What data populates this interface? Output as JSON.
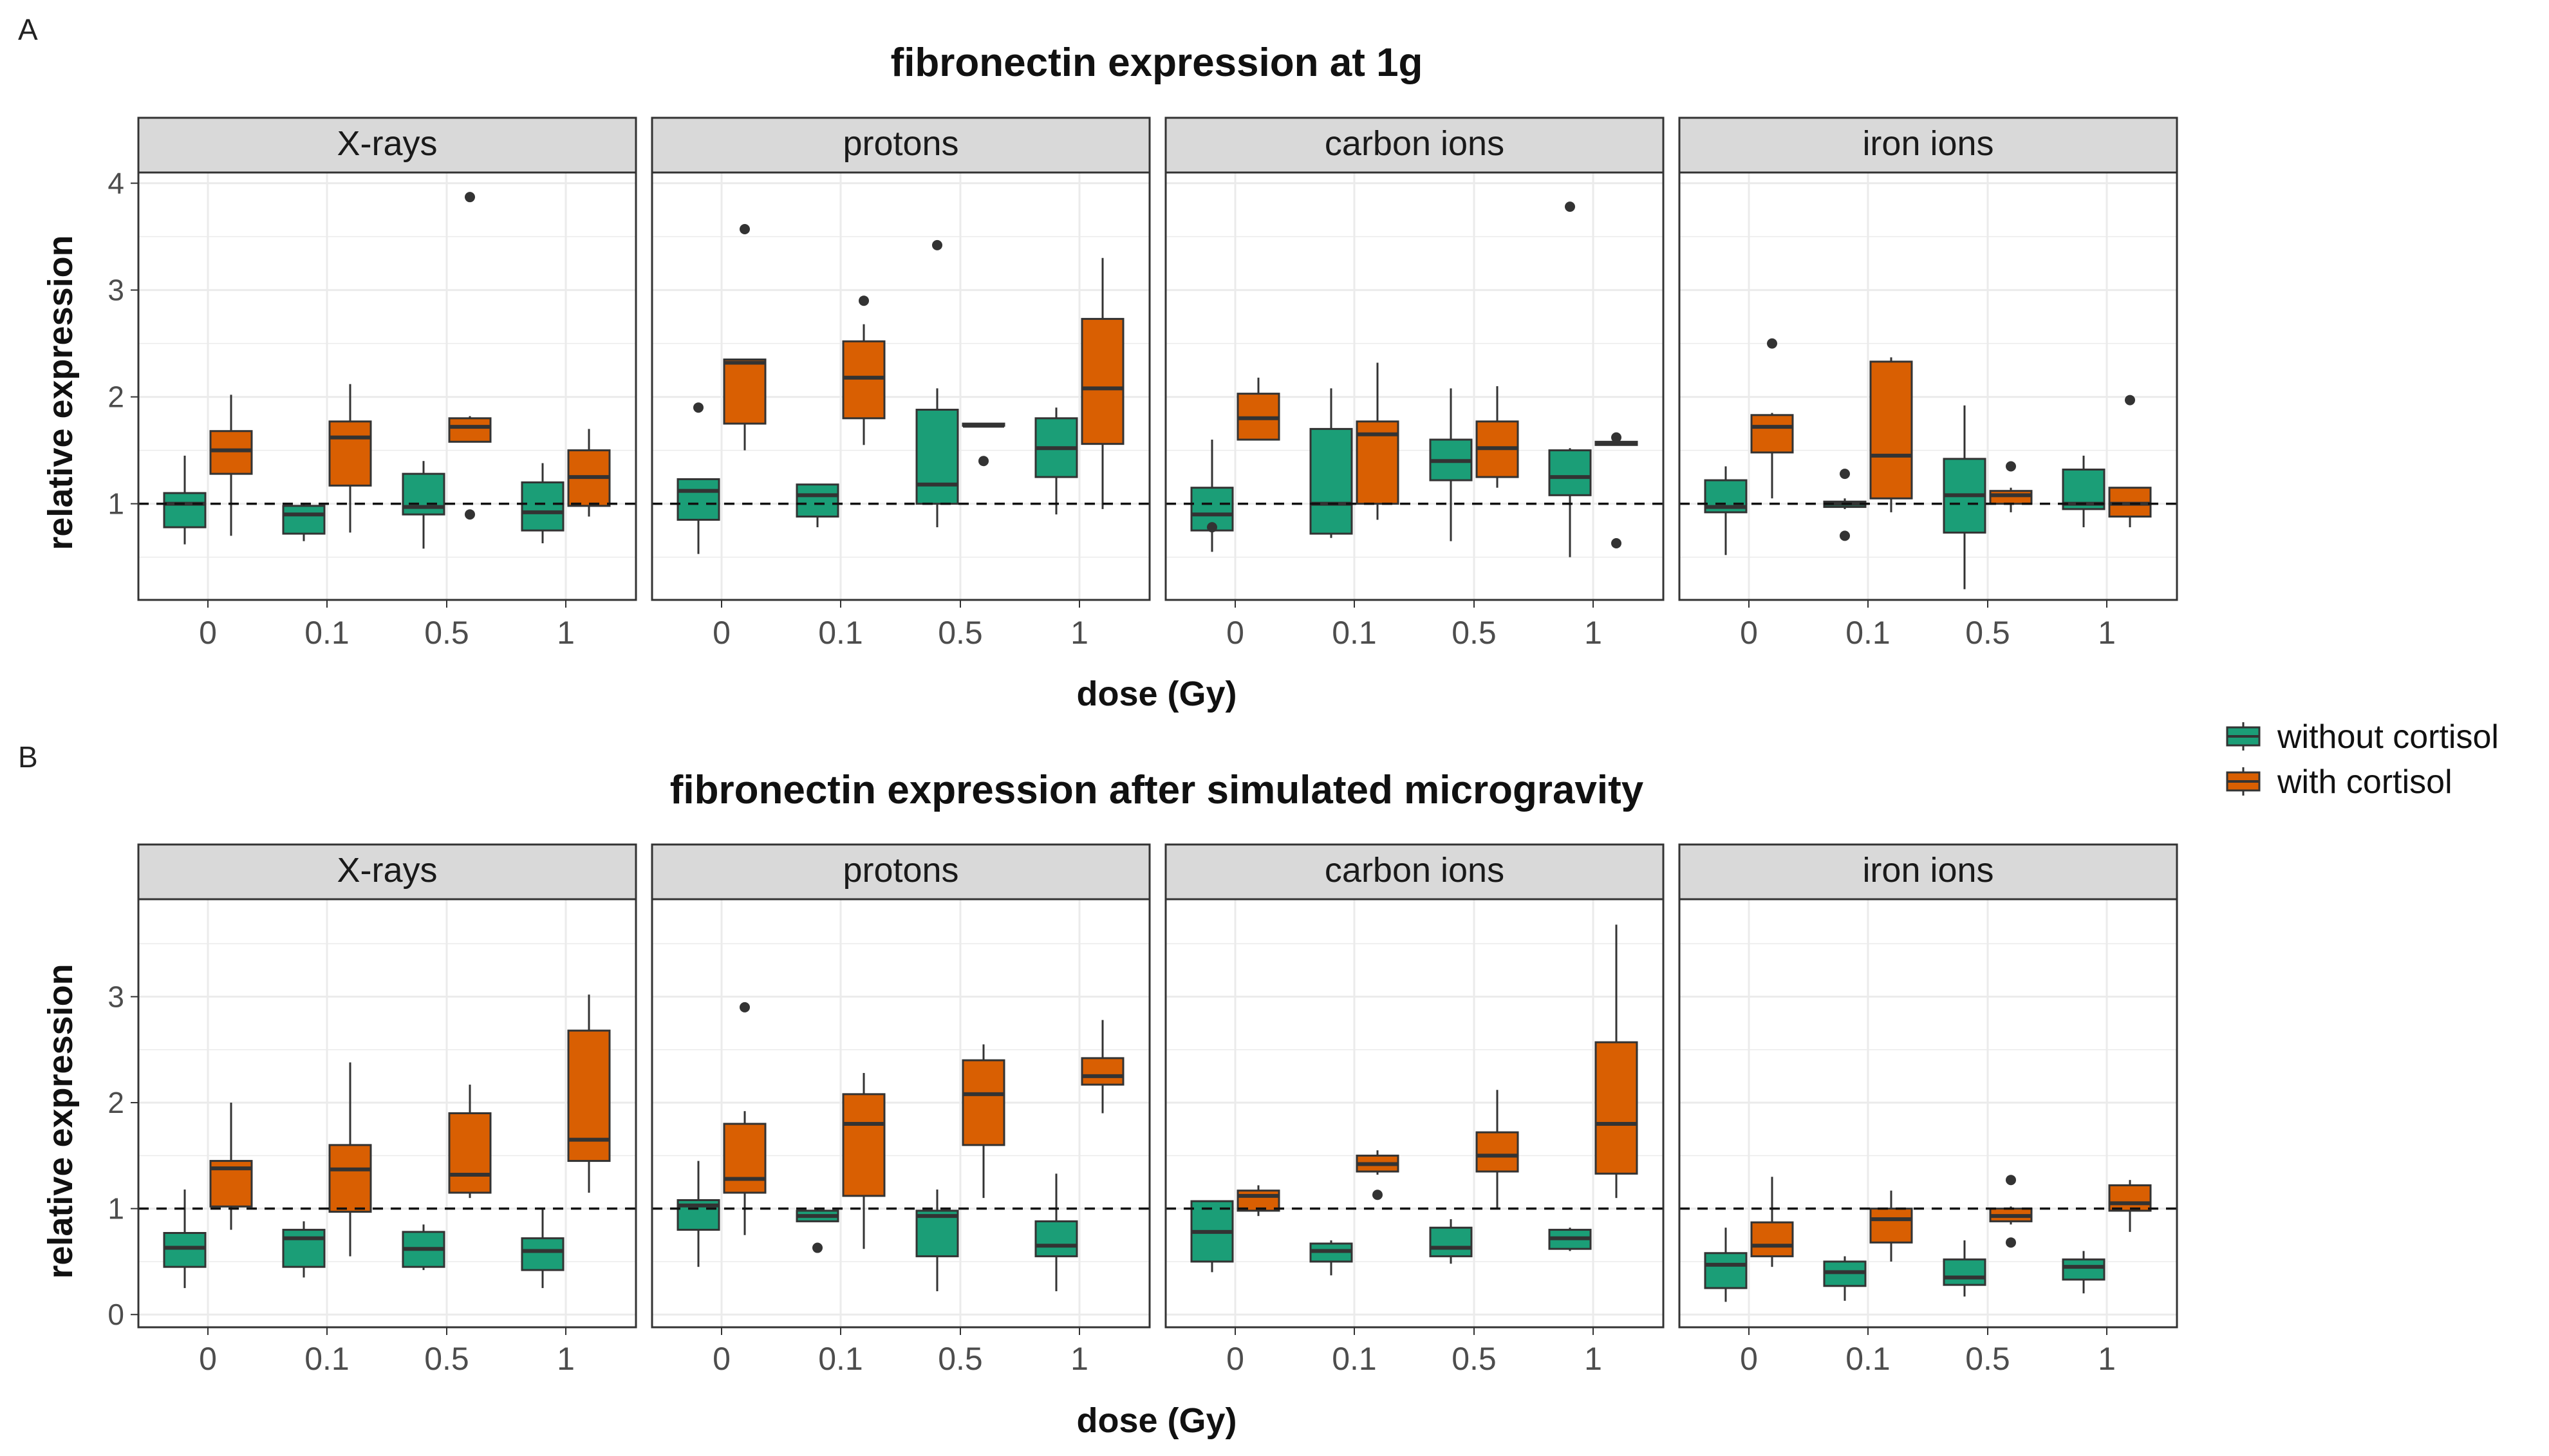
{
  "figure": {
    "legend": {
      "entries": [
        {
          "label": "without cortisol",
          "color": "#1b9e77"
        },
        {
          "label": "with cortisol",
          "color": "#d95f02"
        }
      ]
    },
    "facet_labels": [
      "X-rays",
      "protons",
      "carbon ions",
      "iron ions"
    ],
    "dose_labels": [
      "0",
      "0.1",
      "0.5",
      "1"
    ],
    "colors": {
      "without": "#1b9e77",
      "with": "#d95f02",
      "strip": "#d9d9d9",
      "grid": "#ebebeb"
    }
  },
  "chart_data": [
    {
      "panel_label": "A",
      "type": "boxplot",
      "title": "fibronectin expression at 1g",
      "xlabel": "dose (Gy)",
      "ylabel": "relative expression",
      "ylim": [
        0.1,
        4.1
      ],
      "yticks": [
        1,
        2,
        3,
        4
      ],
      "reference_line": 1,
      "facets": [
        {
          "name": "X-rays",
          "groups": [
            {
              "dose": "0",
              "without": {
                "min": 0.62,
                "q1": 0.78,
                "med": 1.0,
                "q3": 1.1,
                "max": 1.45,
                "out": []
              },
              "with": {
                "min": 0.7,
                "q1": 1.28,
                "med": 1.5,
                "q3": 1.68,
                "max": 2.02,
                "out": []
              }
            },
            {
              "dose": "0.1",
              "without": {
                "min": 0.65,
                "q1": 0.72,
                "med": 0.9,
                "q3": 0.98,
                "max": 1.0,
                "out": []
              },
              "with": {
                "min": 0.73,
                "q1": 1.17,
                "med": 1.62,
                "q3": 1.77,
                "max": 2.12,
                "out": []
              }
            },
            {
              "dose": "0.5",
              "without": {
                "min": 0.58,
                "q1": 0.9,
                "med": 0.97,
                "q3": 1.28,
                "max": 1.4,
                "out": []
              },
              "with": {
                "min": 1.58,
                "q1": 1.58,
                "med": 1.72,
                "q3": 1.8,
                "max": 1.82,
                "out": [
                  3.87,
                  0.9
                ]
              }
            },
            {
              "dose": "1",
              "without": {
                "min": 0.63,
                "q1": 0.75,
                "med": 0.92,
                "q3": 1.2,
                "max": 1.38,
                "out": []
              },
              "with": {
                "min": 0.88,
                "q1": 0.98,
                "med": 1.25,
                "q3": 1.5,
                "max": 1.7,
                "out": []
              }
            }
          ]
        },
        {
          "name": "protons",
          "groups": [
            {
              "dose": "0",
              "without": {
                "min": 0.53,
                "q1": 0.85,
                "med": 1.12,
                "q3": 1.23,
                "max": 1.23,
                "out": [
                  1.9
                ]
              },
              "with": {
                "min": 1.5,
                "q1": 1.75,
                "med": 2.32,
                "q3": 2.35,
                "max": 2.35,
                "out": [
                  3.57
                ]
              }
            },
            {
              "dose": "0.1",
              "without": {
                "min": 0.78,
                "q1": 0.88,
                "med": 1.08,
                "q3": 1.18,
                "max": 1.18,
                "out": []
              },
              "with": {
                "min": 1.55,
                "q1": 1.8,
                "med": 2.18,
                "q3": 2.52,
                "max": 2.68,
                "out": [
                  2.9
                ]
              }
            },
            {
              "dose": "0.5",
              "without": {
                "min": 0.78,
                "q1": 1.0,
                "med": 1.18,
                "q3": 1.88,
                "max": 2.08,
                "out": [
                  3.42
                ]
              },
              "with": {
                "min": 1.73,
                "q1": 1.73,
                "med": 1.73,
                "q3": 1.75,
                "max": 1.75,
                "out": [
                  1.4
                ]
              }
            },
            {
              "dose": "1",
              "without": {
                "min": 0.9,
                "q1": 1.25,
                "med": 1.52,
                "q3": 1.8,
                "max": 1.9,
                "out": []
              },
              "with": {
                "min": 0.95,
                "q1": 1.56,
                "med": 2.08,
                "q3": 2.73,
                "max": 3.3,
                "out": []
              }
            }
          ]
        },
        {
          "name": "carbon ions",
          "groups": [
            {
              "dose": "0",
              "without": {
                "min": 0.55,
                "q1": 0.75,
                "med": 0.9,
                "q3": 1.15,
                "max": 1.6,
                "out": [
                  0.78
                ]
              },
              "with": {
                "min": 1.6,
                "q1": 1.6,
                "med": 1.8,
                "q3": 2.03,
                "max": 2.18,
                "out": []
              }
            },
            {
              "dose": "0.1",
              "without": {
                "min": 0.68,
                "q1": 0.72,
                "med": 1.0,
                "q3": 1.7,
                "max": 2.08,
                "out": []
              },
              "with": {
                "min": 0.85,
                "q1": 1.0,
                "med": 1.65,
                "q3": 1.77,
                "max": 2.32,
                "out": []
              }
            },
            {
              "dose": "0.5",
              "without": {
                "min": 0.65,
                "q1": 1.22,
                "med": 1.4,
                "q3": 1.6,
                "max": 2.08,
                "out": []
              },
              "with": {
                "min": 1.15,
                "q1": 1.25,
                "med": 1.52,
                "q3": 1.77,
                "max": 2.1,
                "out": []
              }
            },
            {
              "dose": "1",
              "without": {
                "min": 0.5,
                "q1": 1.08,
                "med": 1.25,
                "q3": 1.5,
                "max": 1.52,
                "out": [
                  3.78
                ]
              },
              "with": {
                "min": 1.55,
                "q1": 1.55,
                "med": 1.57,
                "q3": 1.58,
                "max": 1.6,
                "out": [
                  1.62,
                  0.63
                ]
              }
            }
          ]
        },
        {
          "name": "iron ions",
          "groups": [
            {
              "dose": "0",
              "without": {
                "min": 0.52,
                "q1": 0.92,
                "med": 0.97,
                "q3": 1.22,
                "max": 1.35,
                "out": []
              },
              "with": {
                "min": 1.05,
                "q1": 1.48,
                "med": 1.72,
                "q3": 1.83,
                "max": 1.85,
                "out": [
                  2.5
                ]
              }
            },
            {
              "dose": "0.1",
              "without": {
                "min": 0.95,
                "q1": 0.97,
                "med": 1.0,
                "q3": 1.02,
                "max": 1.05,
                "out": [
                  1.28,
                  0.7
                ]
              },
              "with": {
                "min": 0.92,
                "q1": 1.05,
                "med": 1.45,
                "q3": 2.33,
                "max": 2.37,
                "out": []
              }
            },
            {
              "dose": "0.5",
              "without": {
                "min": 0.2,
                "q1": 0.73,
                "med": 1.08,
                "q3": 1.42,
                "max": 1.92,
                "out": []
              },
              "with": {
                "min": 0.92,
                "q1": 1.0,
                "med": 1.08,
                "q3": 1.12,
                "max": 1.15,
                "out": [
                  1.35
                ]
              }
            },
            {
              "dose": "1",
              "without": {
                "min": 0.78,
                "q1": 0.95,
                "med": 1.0,
                "q3": 1.32,
                "max": 1.45,
                "out": []
              },
              "with": {
                "min": 0.78,
                "q1": 0.88,
                "med": 1.0,
                "q3": 1.15,
                "max": 1.15,
                "out": [
                  1.97
                ]
              }
            }
          ]
        }
      ]
    },
    {
      "panel_label": "B",
      "type": "boxplot",
      "title": "fibronectin expression after simulated microgravity",
      "xlabel": "dose (Gy)",
      "ylabel": "relative expression",
      "ylim": [
        -0.12,
        3.92
      ],
      "yticks": [
        0,
        1,
        2,
        3
      ],
      "reference_line": 1,
      "facets": [
        {
          "name": "X-rays",
          "groups": [
            {
              "dose": "0",
              "without": {
                "min": 0.25,
                "q1": 0.45,
                "med": 0.63,
                "q3": 0.77,
                "max": 1.18,
                "out": []
              },
              "with": {
                "min": 0.8,
                "q1": 1.02,
                "med": 1.38,
                "q3": 1.45,
                "max": 2.0,
                "out": []
              }
            },
            {
              "dose": "0.1",
              "without": {
                "min": 0.35,
                "q1": 0.45,
                "med": 0.72,
                "q3": 0.8,
                "max": 0.88,
                "out": []
              },
              "with": {
                "min": 0.55,
                "q1": 0.97,
                "med": 1.37,
                "q3": 1.6,
                "max": 2.38,
                "out": []
              }
            },
            {
              "dose": "0.5",
              "without": {
                "min": 0.42,
                "q1": 0.45,
                "med": 0.62,
                "q3": 0.78,
                "max": 0.85,
                "out": []
              },
              "with": {
                "min": 1.1,
                "q1": 1.15,
                "med": 1.32,
                "q3": 1.9,
                "max": 2.17,
                "out": []
              }
            },
            {
              "dose": "1",
              "without": {
                "min": 0.25,
                "q1": 0.42,
                "med": 0.6,
                "q3": 0.72,
                "max": 1.0,
                "out": []
              },
              "with": {
                "min": 1.15,
                "q1": 1.45,
                "med": 1.65,
                "q3": 2.68,
                "max": 3.02,
                "out": []
              }
            }
          ]
        },
        {
          "name": "protons",
          "groups": [
            {
              "dose": "0",
              "without": {
                "min": 0.45,
                "q1": 0.8,
                "med": 1.03,
                "q3": 1.08,
                "max": 1.45,
                "out": []
              },
              "with": {
                "min": 0.75,
                "q1": 1.15,
                "med": 1.28,
                "q3": 1.8,
                "max": 1.92,
                "out": [
                  2.9
                ]
              }
            },
            {
              "dose": "0.1",
              "without": {
                "min": 0.88,
                "q1": 0.88,
                "med": 0.93,
                "q3": 0.98,
                "max": 1.0,
                "out": [
                  0.63
                ]
              },
              "with": {
                "min": 0.62,
                "q1": 1.12,
                "med": 1.8,
                "q3": 2.08,
                "max": 2.28,
                "out": []
              }
            },
            {
              "dose": "0.5",
              "without": {
                "min": 0.22,
                "q1": 0.55,
                "med": 0.93,
                "q3": 0.98,
                "max": 1.18,
                "out": []
              },
              "with": {
                "min": 1.1,
                "q1": 1.6,
                "med": 2.08,
                "q3": 2.4,
                "max": 2.55,
                "out": []
              }
            },
            {
              "dose": "1",
              "without": {
                "min": 0.22,
                "q1": 0.55,
                "med": 0.65,
                "q3": 0.88,
                "max": 1.33,
                "out": []
              },
              "with": {
                "min": 1.9,
                "q1": 2.17,
                "med": 2.25,
                "q3": 2.42,
                "max": 2.78,
                "out": []
              }
            }
          ]
        },
        {
          "name": "carbon ions",
          "groups": [
            {
              "dose": "0",
              "without": {
                "min": 0.4,
                "q1": 0.5,
                "med": 0.78,
                "q3": 1.07,
                "max": 1.07,
                "out": []
              },
              "with": {
                "min": 0.93,
                "q1": 0.98,
                "med": 1.12,
                "q3": 1.17,
                "max": 1.22,
                "out": []
              }
            },
            {
              "dose": "0.1",
              "without": {
                "min": 0.37,
                "q1": 0.5,
                "med": 0.6,
                "q3": 0.67,
                "max": 0.7,
                "out": []
              },
              "with": {
                "min": 1.32,
                "q1": 1.35,
                "med": 1.42,
                "q3": 1.5,
                "max": 1.55,
                "out": [
                  1.13
                ]
              }
            },
            {
              "dose": "0.5",
              "without": {
                "min": 0.48,
                "q1": 0.55,
                "med": 0.63,
                "q3": 0.82,
                "max": 0.9,
                "out": []
              },
              "with": {
                "min": 1.0,
                "q1": 1.35,
                "med": 1.5,
                "q3": 1.72,
                "max": 2.12,
                "out": []
              }
            },
            {
              "dose": "1",
              "without": {
                "min": 0.6,
                "q1": 0.62,
                "med": 0.72,
                "q3": 0.8,
                "max": 0.82,
                "out": []
              },
              "with": {
                "min": 1.1,
                "q1": 1.33,
                "med": 1.8,
                "q3": 2.57,
                "max": 3.68,
                "out": []
              }
            }
          ]
        },
        {
          "name": "iron ions",
          "groups": [
            {
              "dose": "0",
              "without": {
                "min": 0.12,
                "q1": 0.25,
                "med": 0.47,
                "q3": 0.58,
                "max": 0.82,
                "out": []
              },
              "with": {
                "min": 0.45,
                "q1": 0.55,
                "med": 0.65,
                "q3": 0.87,
                "max": 1.3,
                "out": []
              }
            },
            {
              "dose": "0.1",
              "without": {
                "min": 0.13,
                "q1": 0.27,
                "med": 0.4,
                "q3": 0.5,
                "max": 0.55,
                "out": []
              },
              "with": {
                "min": 0.5,
                "q1": 0.68,
                "med": 0.9,
                "q3": 1.0,
                "max": 1.17,
                "out": []
              }
            },
            {
              "dose": "0.5",
              "without": {
                "min": 0.17,
                "q1": 0.28,
                "med": 0.35,
                "q3": 0.52,
                "max": 0.7,
                "out": []
              },
              "with": {
                "min": 0.85,
                "q1": 0.88,
                "med": 0.93,
                "q3": 1.0,
                "max": 1.02,
                "out": [
                  1.27,
                  0.68
                ]
              }
            },
            {
              "dose": "1",
              "without": {
                "min": 0.2,
                "q1": 0.33,
                "med": 0.45,
                "q3": 0.52,
                "max": 0.6,
                "out": []
              },
              "with": {
                "min": 0.78,
                "q1": 0.98,
                "med": 1.05,
                "q3": 1.22,
                "max": 1.27,
                "out": []
              }
            }
          ]
        }
      ]
    }
  ]
}
